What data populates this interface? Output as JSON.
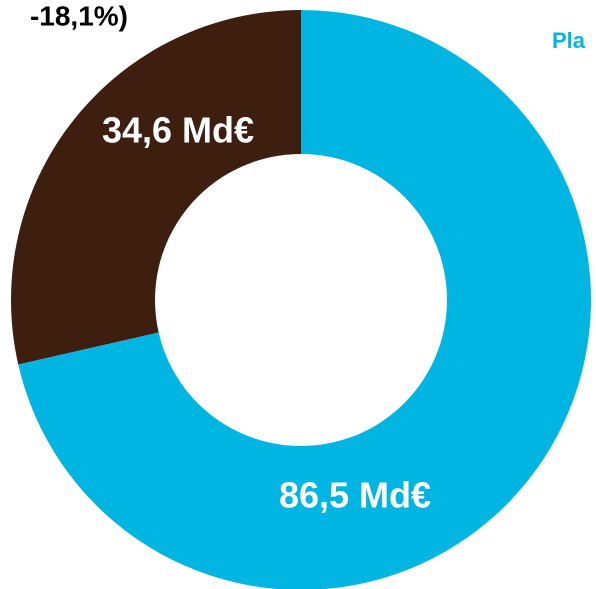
{
  "chart_data": {
    "type": "donut",
    "values": [
      86.5,
      34.6
    ],
    "value_labels": [
      "86,5 Md€",
      "34,6 Md€"
    ],
    "colors": [
      "#00b5e2",
      "#3d1e0f"
    ],
    "annotations": [
      "-18,1%)",
      "Pla"
    ]
  }
}
